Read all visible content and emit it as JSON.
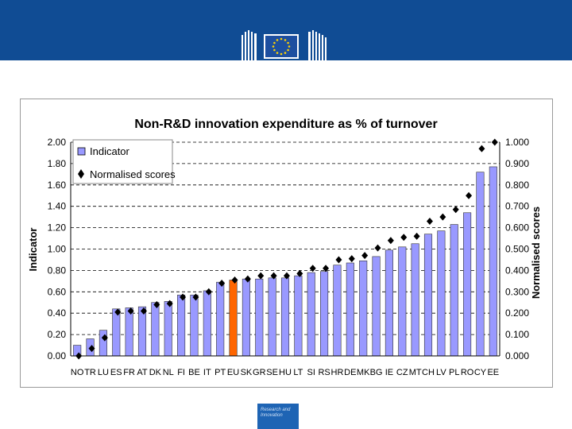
{
  "header": {
    "logo_icon": "eu-commission-logo-icon",
    "flag_icon": "eu-flag-icon",
    "banner_color": "#104c94"
  },
  "footer": {
    "badge_line1": "Research and",
    "badge_line2": "Innovation",
    "badge_color": "#1e64b4"
  },
  "chart_data": {
    "type": "bar",
    "title": "Non-R&D innovation expenditure as % of turnover",
    "ylabel": "Indicator",
    "y2label": "Normalised scores",
    "ylim": [
      0,
      2.0
    ],
    "y2lim": [
      0,
      1.0
    ],
    "yticks": [
      "0.00",
      "0.20",
      "0.40",
      "0.60",
      "0.80",
      "1.00",
      "1.20",
      "1.40",
      "1.60",
      "1.80",
      "2.00"
    ],
    "y2ticks": [
      "0.000",
      "0.100",
      "0.200",
      "0.300",
      "0.400",
      "0.500",
      "0.600",
      "0.700",
      "0.800",
      "0.900",
      "1.000"
    ],
    "grid": "dashed horizontal",
    "legend_position": "top-left",
    "categories": [
      "NO",
      "TR",
      "LU",
      "ES",
      "FR",
      "AT",
      "DK",
      "NL",
      "FI",
      "BE",
      "IT",
      "PT",
      "EU",
      "SK",
      "GR",
      "SE",
      "HU",
      "LT",
      "SI",
      "RS",
      "HR",
      "DE",
      "MK",
      "BG",
      "IE",
      "CZ",
      "MT",
      "CH",
      "LV",
      "PL",
      "RO",
      "CY",
      "EE"
    ],
    "series": [
      {
        "name": "Indicator",
        "kind": "bar",
        "color": "#9999ff",
        "highlight": {
          "category": "EU",
          "color": "#ff6600"
        },
        "values": [
          0.1,
          0.16,
          0.24,
          0.44,
          0.45,
          0.46,
          0.5,
          0.51,
          0.57,
          0.57,
          0.61,
          0.69,
          0.71,
          0.72,
          0.72,
          0.73,
          0.73,
          0.75,
          0.78,
          0.79,
          0.85,
          0.87,
          0.89,
          0.93,
          0.99,
          1.02,
          1.05,
          1.14,
          1.17,
          1.23,
          1.34,
          1.72,
          1.77
        ]
      },
      {
        "name": "Normalised scores",
        "kind": "marker",
        "color": "#000000",
        "values": [
          0.0,
          0.035,
          0.085,
          0.205,
          0.21,
          0.21,
          0.24,
          0.245,
          0.275,
          0.275,
          0.3,
          0.34,
          0.355,
          0.36,
          0.375,
          0.375,
          0.375,
          0.385,
          0.41,
          0.41,
          0.45,
          0.455,
          0.47,
          0.505,
          0.54,
          0.555,
          0.56,
          0.63,
          0.65,
          0.685,
          0.75,
          0.97,
          1.0
        ]
      }
    ],
    "legend": [
      "Indicator",
      "Normalised scores"
    ]
  }
}
